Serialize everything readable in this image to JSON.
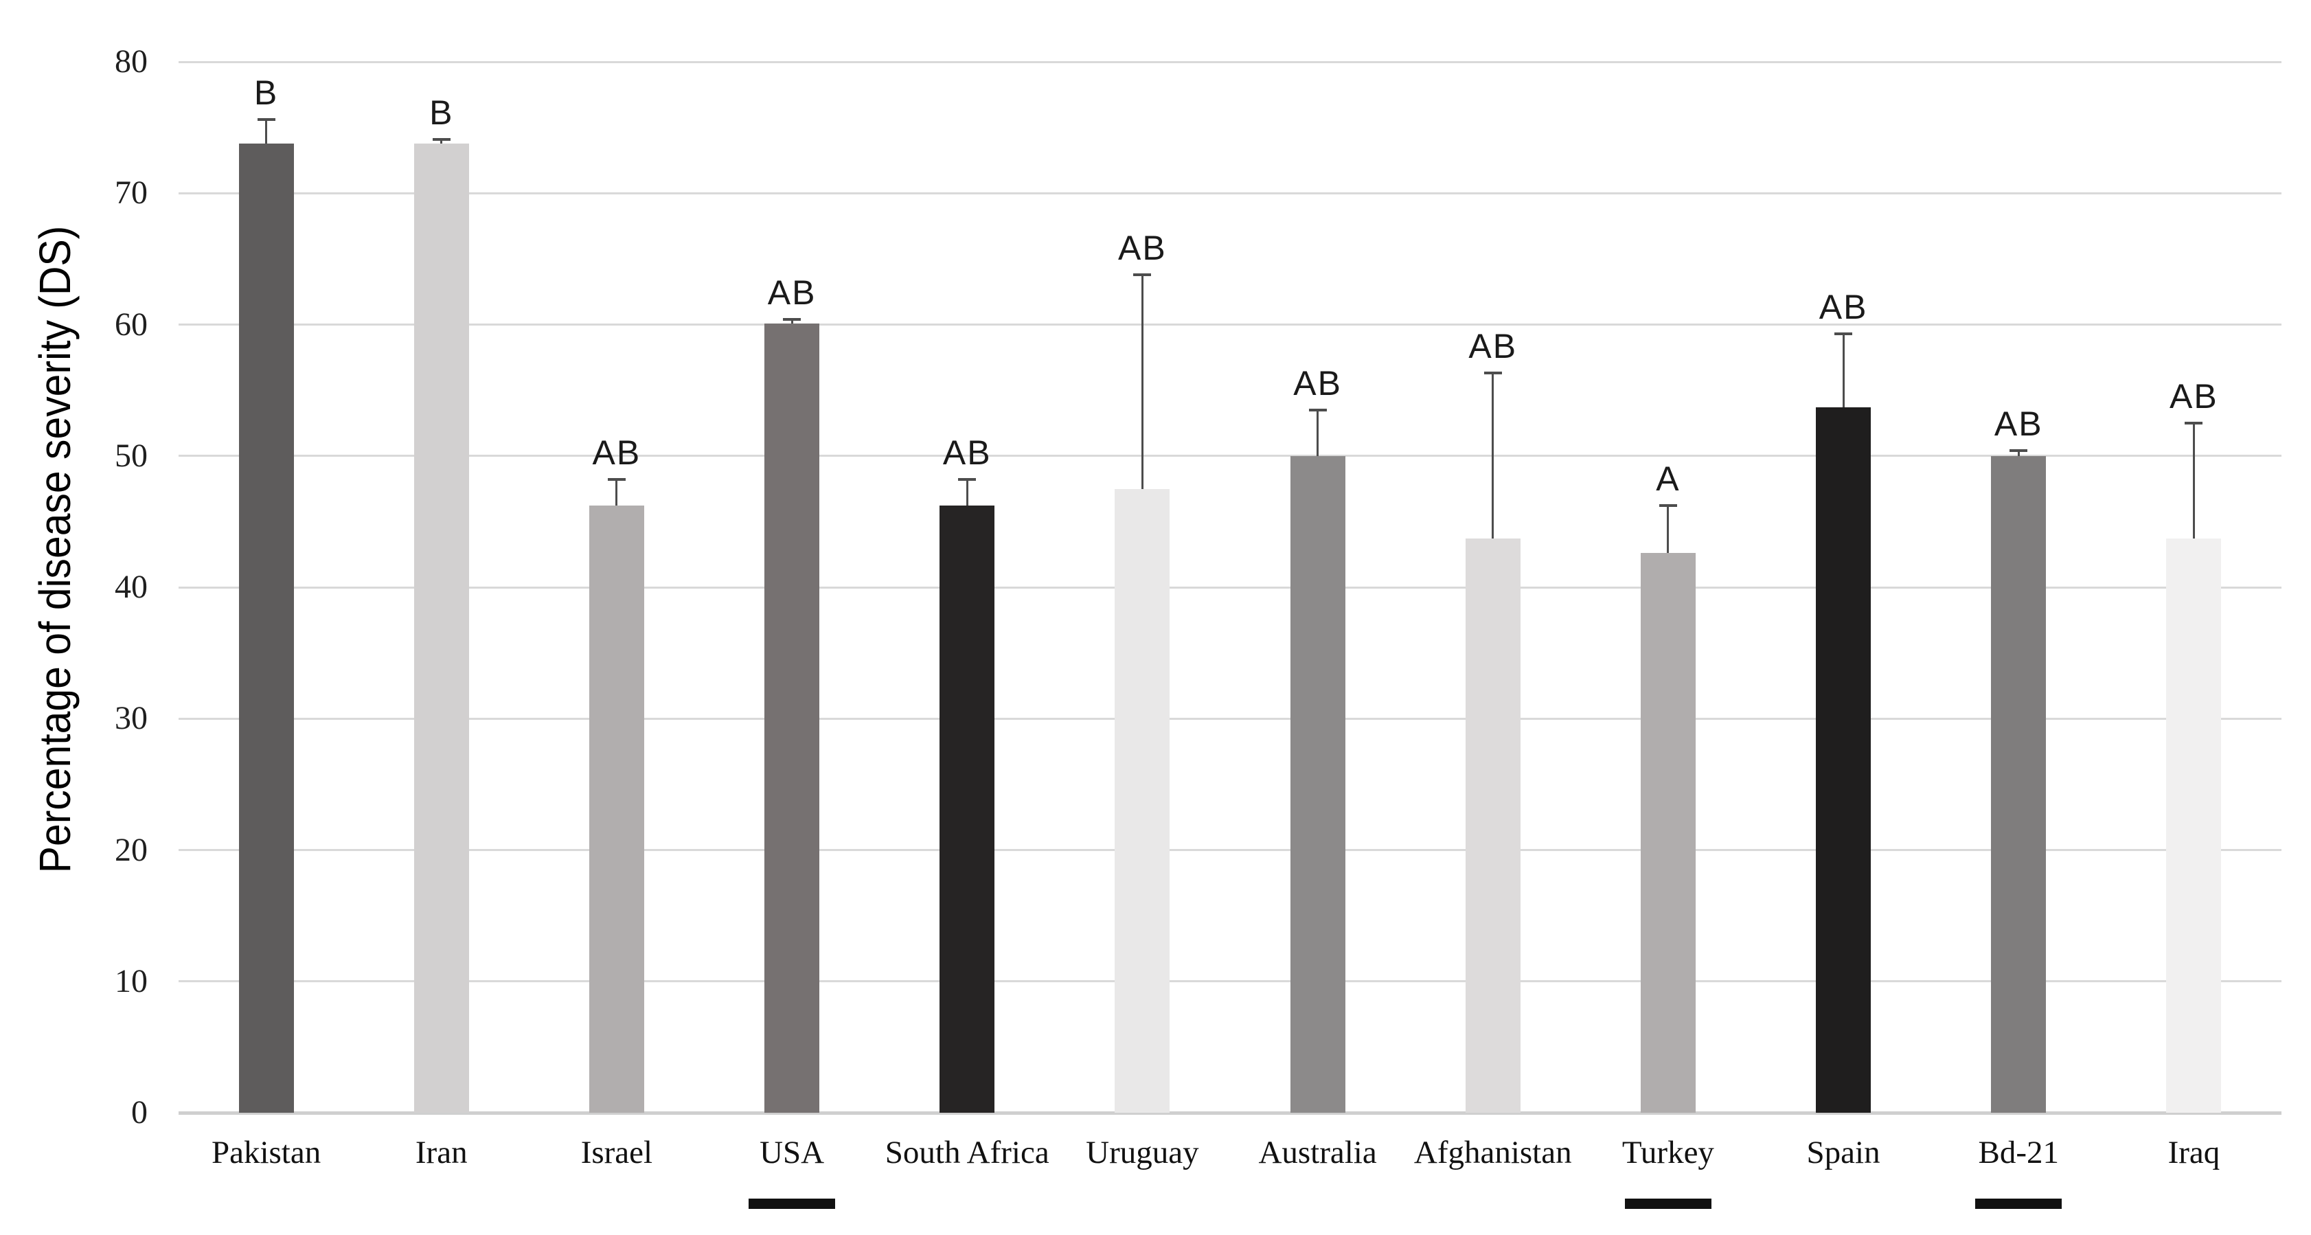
{
  "chart_data": {
    "type": "bar",
    "title": "",
    "ylabel": "Percentage of disease severity (DS)",
    "xlabel": "",
    "ylim": [
      0,
      80
    ],
    "yticks": [
      0,
      10,
      20,
      30,
      40,
      50,
      60,
      70,
      80
    ],
    "grid": true,
    "legend_position": "none",
    "categories": [
      "Pakistan",
      "Iran",
      "Israel",
      "USA",
      "South Africa",
      "Uruguay",
      "Australia",
      "Afghanistan",
      "Turkey",
      "Spain",
      "Bd-21",
      "Iraq"
    ],
    "series": [
      {
        "name": "Percentage of disease severity (DS)",
        "values": [
          73.8,
          73.8,
          46.2,
          60.1,
          46.2,
          47.5,
          50.0,
          43.7,
          42.6,
          53.7,
          50.0,
          43.7
        ]
      }
    ],
    "error_bar_upper": [
      75.6,
      74.1,
      48.2,
      60.4,
      48.2,
      63.8,
      53.5,
      56.3,
      46.2,
      59.3,
      50.4,
      52.5
    ],
    "significance_labels": [
      "B",
      "B",
      "AB",
      "AB",
      "AB",
      "AB",
      "AB",
      "AB",
      "A",
      "AB",
      "AB",
      "AB"
    ],
    "underlined_categories": [
      "USA",
      "Turkey",
      "Bd-21"
    ],
    "bar_colors": [
      "#5e5c5c",
      "#d2d0d0",
      "#b1aeae",
      "#767171",
      "#262424",
      "#e9e8e8",
      "#8c8a8a",
      "#dddbdb",
      "#b0adad",
      "#1f1e1e",
      "#7f7d7d",
      "#f1f0f0"
    ]
  },
  "style_colors": {
    "background": "#ffffff",
    "gridline": "#d9d9d9",
    "baseline": "#cfcfcf",
    "error_bar": "#4d4d4d",
    "text": "#1a1a1a",
    "underline": "#111111"
  }
}
